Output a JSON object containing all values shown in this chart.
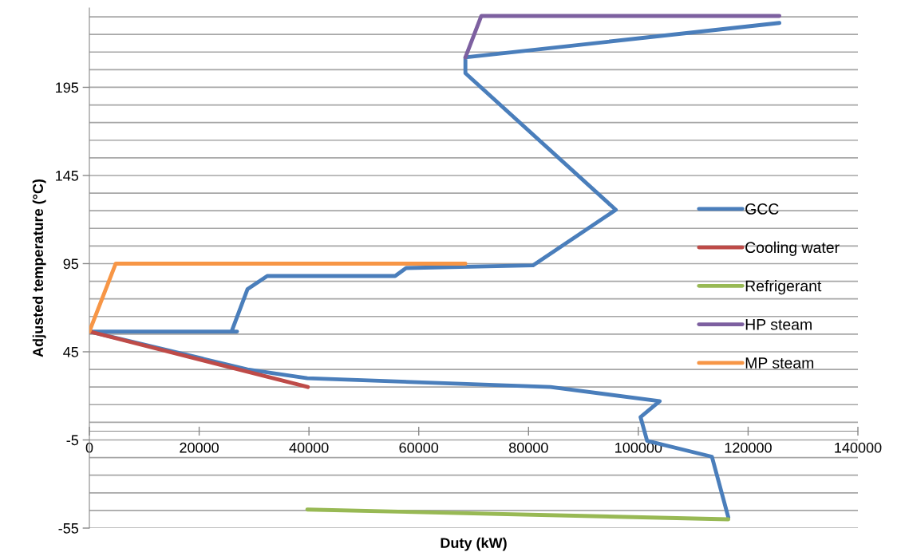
{
  "chart_data": {
    "type": "line",
    "xlabel": "Duty (kW)",
    "ylabel": "Adjusted temperature (°C)",
    "xlim": [
      0,
      140000
    ],
    "xticks": [
      0,
      20000,
      40000,
      60000,
      80000,
      100000,
      120000,
      140000
    ],
    "ylim": [
      -55,
      240
    ],
    "yticks": [
      -55,
      {
        "value": -45,
        "label": null
      },
      {
        "value": -35,
        "label": null
      },
      {
        "value": -25,
        "label": null
      },
      {
        "value": -15,
        "label": null
      },
      -5,
      {
        "value": 5,
        "label": null
      },
      {
        "value": 15,
        "label": null
      },
      {
        "value": 25,
        "label": null
      },
      {
        "value": 35,
        "label": null
      },
      45,
      {
        "value": 55,
        "label": null
      },
      {
        "value": 65,
        "label": null
      },
      {
        "value": 75,
        "label": null
      },
      {
        "value": 85,
        "label": null
      },
      95,
      {
        "value": 105,
        "label": null
      },
      {
        "value": 115,
        "label": null
      },
      {
        "value": 125,
        "label": null
      },
      {
        "value": 135,
        "label": null
      },
      145,
      {
        "value": 155,
        "label": null
      },
      {
        "value": 165,
        "label": null
      },
      {
        "value": 175,
        "label": null
      },
      {
        "value": 185,
        "label": null
      },
      195,
      {
        "value": 205,
        "label": null
      },
      {
        "value": 215,
        "label": null
      },
      {
        "value": 225,
        "label": null
      },
      {
        "value": 235,
        "label": null
      }
    ],
    "grid": "y",
    "legend": "right",
    "marker": "none",
    "line_style": "solid",
    "series": [
      {
        "name": "GCC",
        "color": "#4a7ebb",
        "x": [
          125700,
          68500,
          68500,
          95900,
          80800,
          57700,
          55700,
          32400,
          28800,
          25900,
          26900,
          0,
          28800,
          39700,
          84000,
          103900,
          100400,
          101600,
          113400,
          116400
        ],
        "values": [
          231.5,
          212,
          203,
          125.5,
          94,
          92.5,
          88,
          88,
          80.5,
          56.5,
          56.5,
          56.5,
          35,
          30,
          25,
          17,
          8,
          -5.5,
          -14.5,
          -49
        ]
      },
      {
        "name": "Cooling water",
        "color": "#be4b48",
        "x": [
          0,
          39800
        ],
        "values": [
          56.5,
          25
        ]
      },
      {
        "name": "Refrigerant",
        "color": "#98b954",
        "x": [
          39700,
          116400
        ],
        "values": [
          -44.5,
          -50
        ]
      },
      {
        "name": "HP steam",
        "color": "#7d60a0",
        "x": [
          68500,
          71400,
          125700
        ],
        "values": [
          212,
          235.5,
          235.5
        ]
      },
      {
        "name": "MP steam",
        "color": "#f79646",
        "x": [
          0,
          4800,
          68500
        ],
        "values": [
          56.5,
          95,
          95
        ]
      }
    ]
  }
}
